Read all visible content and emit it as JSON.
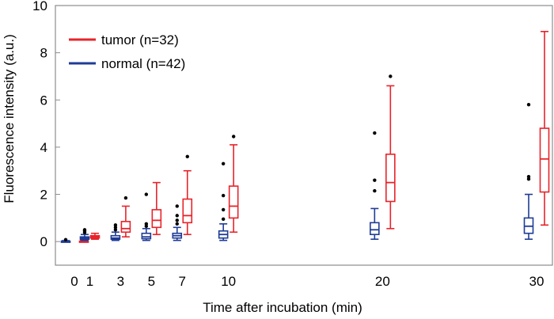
{
  "chart_data": {
    "type": "boxplot",
    "title": "",
    "xlabel": "Time after incubation (min)",
    "ylabel": "Fluorescence intensity (a.u.)",
    "ylim": [
      -1,
      10
    ],
    "yticks": [
      0,
      2,
      4,
      6,
      8,
      10
    ],
    "x_categories": [
      "0",
      "1",
      "3",
      "5",
      "7",
      "10",
      "20",
      "30"
    ],
    "legend": {
      "position": "top-left"
    },
    "series": [
      {
        "name": "tumor (n=32)",
        "color": "#e8232a",
        "boxes": [
          {
            "time": "0",
            "whislo": 0.0,
            "q1": 0.0,
            "med": 0.01,
            "q3": 0.02,
            "whishi": 0.05,
            "fliers": []
          },
          {
            "time": "1",
            "whislo": 0.1,
            "q1": 0.15,
            "med": 0.2,
            "q3": 0.25,
            "whishi": 0.35,
            "fliers": []
          },
          {
            "time": "3",
            "whislo": 0.2,
            "q1": 0.4,
            "med": 0.55,
            "q3": 0.85,
            "whishi": 1.5,
            "fliers": [
              1.85
            ]
          },
          {
            "time": "5",
            "whislo": 0.3,
            "q1": 0.6,
            "med": 0.9,
            "q3": 1.35,
            "whishi": 2.5,
            "fliers": []
          },
          {
            "time": "7",
            "whislo": 0.3,
            "q1": 0.8,
            "med": 1.1,
            "q3": 1.8,
            "whishi": 3.0,
            "fliers": [
              3.6
            ]
          },
          {
            "time": "10",
            "whislo": 0.4,
            "q1": 1.0,
            "med": 1.5,
            "q3": 2.35,
            "whishi": 4.1,
            "fliers": [
              4.45
            ]
          },
          {
            "time": "20",
            "whislo": 0.55,
            "q1": 1.7,
            "med": 2.5,
            "q3": 3.7,
            "whishi": 6.6,
            "fliers": [
              7.0
            ]
          },
          {
            "time": "30",
            "whislo": 0.7,
            "q1": 2.1,
            "med": 3.5,
            "q3": 4.8,
            "whishi": 8.9,
            "fliers": []
          }
        ]
      },
      {
        "name": "normal (n=42)",
        "color": "#1f3c96",
        "boxes": [
          {
            "time": "0",
            "whislo": 0.0,
            "q1": 0.0,
            "med": 0.0,
            "q3": 0.02,
            "whishi": 0.04,
            "fliers": [
              0.08
            ]
          },
          {
            "time": "1",
            "whislo": 0.05,
            "q1": 0.1,
            "med": 0.15,
            "q3": 0.2,
            "whishi": 0.3,
            "fliers": [
              0.38,
              0.45,
              0.5
            ]
          },
          {
            "time": "3",
            "whislo": 0.05,
            "q1": 0.1,
            "med": 0.15,
            "q3": 0.25,
            "whishi": 0.4,
            "fliers": [
              0.5,
              0.6,
              0.7
            ]
          },
          {
            "time": "5",
            "whislo": 0.05,
            "q1": 0.12,
            "med": 0.2,
            "q3": 0.35,
            "whishi": 0.55,
            "fliers": [
              0.65,
              0.75,
              2.0
            ]
          },
          {
            "time": "7",
            "whislo": 0.05,
            "q1": 0.15,
            "med": 0.25,
            "q3": 0.35,
            "whishi": 0.6,
            "fliers": [
              0.75,
              0.9,
              1.1,
              1.5
            ]
          },
          {
            "time": "10",
            "whislo": 0.05,
            "q1": 0.15,
            "med": 0.3,
            "q3": 0.45,
            "whishi": 0.75,
            "fliers": [
              0.95,
              1.35,
              1.95,
              3.3
            ]
          },
          {
            "time": "20",
            "whislo": 0.1,
            "q1": 0.3,
            "med": 0.5,
            "q3": 0.8,
            "whishi": 1.4,
            "fliers": [
              2.15,
              2.6,
              4.6
            ]
          },
          {
            "time": "30",
            "whislo": 0.1,
            "q1": 0.35,
            "med": 0.65,
            "q3": 1.0,
            "whishi": 2.0,
            "fliers": [
              2.65,
              2.75,
              5.8
            ]
          }
        ]
      }
    ]
  }
}
